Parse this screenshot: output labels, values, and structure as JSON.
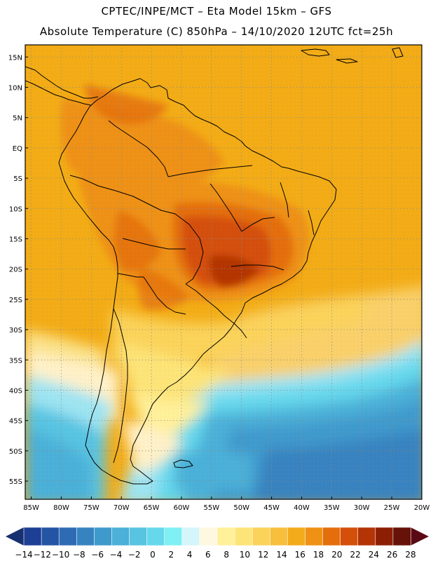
{
  "header": {
    "line1": "CPTEC/INPE/MCT –  Eta Model 15km – GFS",
    "line2": "Absolute Temperature (C) 850hPa – 14/10/2020 12UTC fct=25h"
  },
  "axes": {
    "lat_labels": [
      "15N",
      "10N",
      "5N",
      "EQ",
      "5S",
      "10S",
      "15S",
      "20S",
      "25S",
      "30S",
      "35S",
      "40S",
      "45S",
      "50S",
      "55S"
    ],
    "lon_labels": [
      "85W",
      "80W",
      "75W",
      "70W",
      "65W",
      "60W",
      "55W",
      "50W",
      "45W",
      "40W",
      "35W",
      "30W",
      "25W",
      "20W"
    ],
    "lat_range": [
      17,
      -58
    ],
    "lon_range": [
      -86,
      -20
    ]
  },
  "colorbar": {
    "labels": [
      "-14",
      "-12",
      "-10",
      "-8",
      "-6",
      "-4",
      "-2",
      "0",
      "2",
      "4",
      "6",
      "8",
      "10",
      "12",
      "14",
      "16",
      "18",
      "20",
      "22",
      "24",
      "26",
      "28"
    ],
    "colors": [
      "#1d3f94",
      "#2454a4",
      "#2e6bb4",
      "#3783c0",
      "#3f9acc",
      "#4cb0d8",
      "#58c4e2",
      "#66d8ec",
      "#7ff0f4",
      "#d4f6fa",
      "#fff8e0",
      "#fff09a",
      "#fde478",
      "#fbd35a",
      "#f7bf3c",
      "#f3ab1c",
      "#ee9114",
      "#e46e0c",
      "#d4500a",
      "#b43406",
      "#8c1e04",
      "#661208"
    ],
    "left_arrow": "#173070",
    "right_arrow": "#5a0a14",
    "unit": "C"
  },
  "map": {
    "region": "South America",
    "background": "#f3ac16"
  }
}
